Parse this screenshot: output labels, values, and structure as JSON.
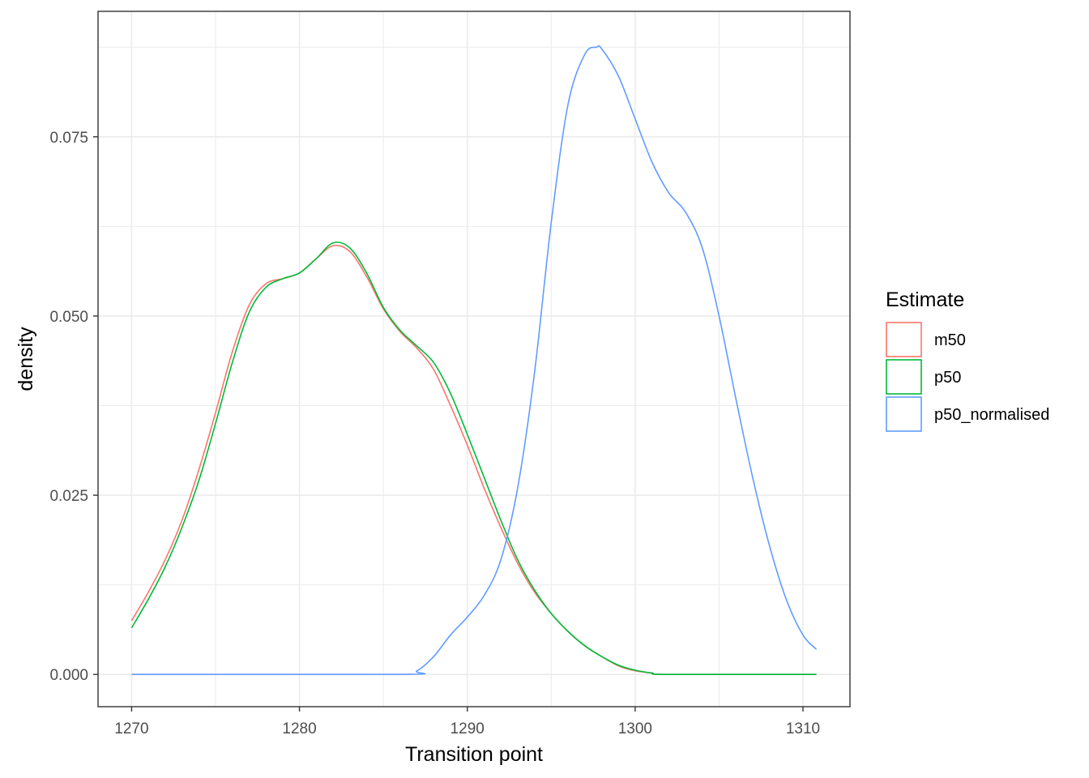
{
  "chart_data": {
    "type": "line",
    "subtype": "density",
    "xlabel": "Transition point",
    "ylabel": "density",
    "xlim": [
      1268,
      1312.8
    ],
    "ylim": [
      -0.0045,
      0.0925
    ],
    "x_ticks": [
      1270,
      1280,
      1290,
      1300,
      1310
    ],
    "y_ticks": [
      0.0,
      0.025,
      0.05,
      0.075
    ],
    "y_tick_labels": [
      "0.000",
      "0.025",
      "0.050",
      "0.075"
    ],
    "grid": true,
    "legend": {
      "title": "Estimate",
      "position": "right"
    },
    "series": [
      {
        "name": "m50",
        "color": "#F8766D",
        "points": [
          [
            1270,
            0.0075
          ],
          [
            1271,
            0.0115
          ],
          [
            1272,
            0.016
          ],
          [
            1273,
            0.0215
          ],
          [
            1274,
            0.0285
          ],
          [
            1275,
            0.0365
          ],
          [
            1276,
            0.045
          ],
          [
            1277,
            0.0515
          ],
          [
            1278,
            0.0545
          ],
          [
            1279,
            0.0552
          ],
          [
            1280,
            0.056
          ],
          [
            1281,
            0.058
          ],
          [
            1282,
            0.0598
          ],
          [
            1283,
            0.059
          ],
          [
            1284,
            0.0555
          ],
          [
            1285,
            0.051
          ],
          [
            1286,
            0.0478
          ],
          [
            1287,
            0.0455
          ],
          [
            1288,
            0.0425
          ],
          [
            1289,
            0.0375
          ],
          [
            1290,
            0.032
          ],
          [
            1291,
            0.026
          ],
          [
            1292,
            0.0205
          ],
          [
            1293,
            0.0155
          ],
          [
            1294,
            0.0115
          ],
          [
            1295,
            0.0085
          ],
          [
            1296,
            0.006
          ],
          [
            1297,
            0.004
          ],
          [
            1298,
            0.0025
          ],
          [
            1299,
            0.0012
          ],
          [
            1300,
            0.0005
          ],
          [
            1301,
            0.0002
          ],
          [
            1302,
            0
          ],
          [
            1310.8,
            0
          ]
        ]
      },
      {
        "name": "p50",
        "color": "#00BA38",
        "points": [
          [
            1270,
            0.0065
          ],
          [
            1271,
            0.0105
          ],
          [
            1272,
            0.015
          ],
          [
            1273,
            0.0205
          ],
          [
            1274,
            0.027
          ],
          [
            1275,
            0.035
          ],
          [
            1276,
            0.0435
          ],
          [
            1277,
            0.0505
          ],
          [
            1278,
            0.054
          ],
          [
            1279,
            0.0552
          ],
          [
            1280,
            0.056
          ],
          [
            1281,
            0.058
          ],
          [
            1282,
            0.0602
          ],
          [
            1283,
            0.0595
          ],
          [
            1284,
            0.056
          ],
          [
            1285,
            0.0512
          ],
          [
            1286,
            0.048
          ],
          [
            1287,
            0.0458
          ],
          [
            1288,
            0.0435
          ],
          [
            1289,
            0.0392
          ],
          [
            1290,
            0.0335
          ],
          [
            1291,
            0.0275
          ],
          [
            1292,
            0.0215
          ],
          [
            1293,
            0.016
          ],
          [
            1294,
            0.0118
          ],
          [
            1295,
            0.0085
          ],
          [
            1296,
            0.006
          ],
          [
            1297,
            0.004
          ],
          [
            1298,
            0.0025
          ],
          [
            1299,
            0.0013
          ],
          [
            1300,
            0.0006
          ],
          [
            1301,
            0.0002
          ],
          [
            1302,
            0
          ],
          [
            1310.8,
            0
          ]
        ]
      },
      {
        "name": "p50_normalised",
        "color": "#619CFF",
        "points": [
          [
            1270,
            0
          ],
          [
            1286,
            0
          ],
          [
            1287,
            0.0005
          ],
          [
            1288,
            0.0025
          ],
          [
            1289,
            0.0055
          ],
          [
            1290,
            0.008
          ],
          [
            1291,
            0.011
          ],
          [
            1292,
            0.016
          ],
          [
            1293,
            0.026
          ],
          [
            1294,
            0.042
          ],
          [
            1295,
            0.063
          ],
          [
            1296,
            0.0795
          ],
          [
            1297,
            0.0865
          ],
          [
            1297.7,
            0.0875
          ],
          [
            1298,
            0.0873
          ],
          [
            1299,
            0.0835
          ],
          [
            1300,
            0.0775
          ],
          [
            1301,
            0.0715
          ],
          [
            1302,
            0.0672
          ],
          [
            1303,
            0.0645
          ],
          [
            1304,
            0.0595
          ],
          [
            1305,
            0.05
          ],
          [
            1306,
            0.0385
          ],
          [
            1307,
            0.0275
          ],
          [
            1308,
            0.018
          ],
          [
            1309,
            0.0105
          ],
          [
            1310,
            0.0055
          ],
          [
            1310.8,
            0.0035
          ]
        ]
      }
    ]
  }
}
